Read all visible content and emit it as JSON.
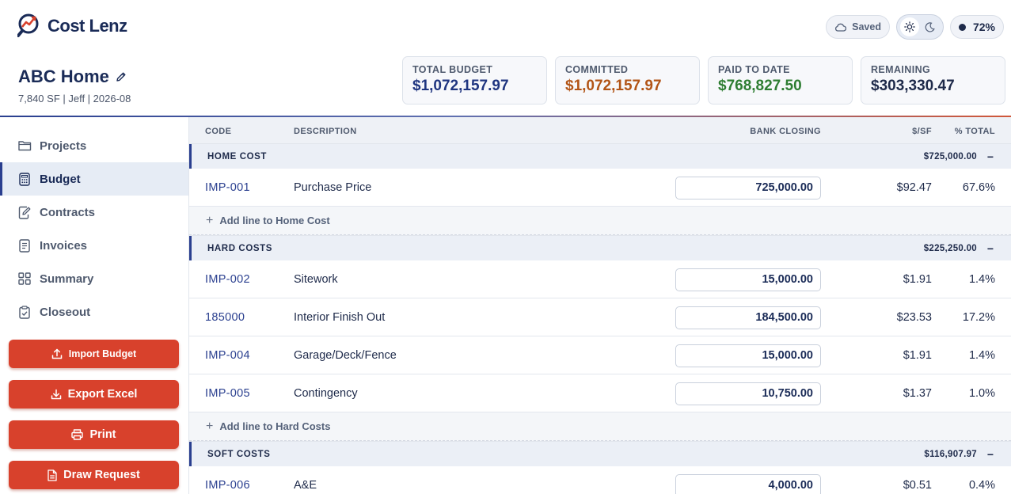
{
  "header": {
    "logo_text": "Cost Lenz",
    "saved_label": "Saved",
    "completion": "72%"
  },
  "project": {
    "name": "ABC Home",
    "subtitle": "7,840 SF | Jeff | 2026-08"
  },
  "stats": [
    {
      "label": "TOTAL BUDGET",
      "value": "$1,072,157.97",
      "color": "#1f3580"
    },
    {
      "label": "COMMITTED",
      "value": "$1,072,157.97",
      "color": "#b25416"
    },
    {
      "label": "PAID TO DATE",
      "value": "$768,827.50",
      "color": "#2e7d32"
    },
    {
      "label": "REMAINING",
      "value": "$303,330.47",
      "color": "#1e2a4a"
    }
  ],
  "sidebar": {
    "items": [
      {
        "label": "Projects",
        "icon": "folder-icon"
      },
      {
        "label": "Budget",
        "icon": "calculator-icon"
      },
      {
        "label": "Contracts",
        "icon": "contract-edit-icon"
      },
      {
        "label": "Invoices",
        "icon": "invoice-icon"
      },
      {
        "label": "Summary",
        "icon": "grid-icon"
      },
      {
        "label": "Closeout",
        "icon": "clipboard-check-icon"
      }
    ],
    "actions": [
      {
        "label": "Import Budget",
        "icon": "upload-icon"
      },
      {
        "label": "Export Excel",
        "icon": "download-icon"
      },
      {
        "label": "Print",
        "icon": "printer-icon"
      },
      {
        "label": "Draw Request",
        "icon": "document-icon"
      }
    ]
  },
  "table": {
    "columns": {
      "code": "CODE",
      "description": "DESCRIPTION",
      "bank_closing": "BANK CLOSING",
      "per_sf": "$/SF",
      "pct_total": "% TOTAL"
    },
    "sections": {
      "home": {
        "name": "HOME COST",
        "total": "$725,000.00",
        "collapse": "−",
        "add_label": "Add line to Home Cost",
        "rows": [
          {
            "code": "IMP-001",
            "description": "Purchase Price",
            "bank_closing": "725,000.00",
            "per_sf": "$92.47",
            "pct": "67.6%"
          }
        ]
      },
      "hard": {
        "name": "HARD COSTS",
        "total": "$225,250.00",
        "collapse": "−",
        "add_label": "Add line to Hard Costs",
        "rows": [
          {
            "code": "IMP-002",
            "description": "Sitework",
            "bank_closing": "15,000.00",
            "per_sf": "$1.91",
            "pct": "1.4%"
          },
          {
            "code": "185000",
            "description": "Interior Finish Out",
            "bank_closing": "184,500.00",
            "per_sf": "$23.53",
            "pct": "17.2%"
          },
          {
            "code": "IMP-004",
            "description": "Garage/Deck/Fence",
            "bank_closing": "15,000.00",
            "per_sf": "$1.91",
            "pct": "1.4%"
          },
          {
            "code": "IMP-005",
            "description": "Contingency",
            "bank_closing": "10,750.00",
            "per_sf": "$1.37",
            "pct": "1.0%"
          }
        ]
      },
      "soft": {
        "name": "SOFT COSTS",
        "total": "$116,907.97",
        "collapse": "−",
        "rows": [
          {
            "code": "IMP-006",
            "description": "A&E",
            "bank_closing": "4,000.00",
            "per_sf": "$0.51",
            "pct": "0.4%"
          }
        ]
      }
    }
  }
}
